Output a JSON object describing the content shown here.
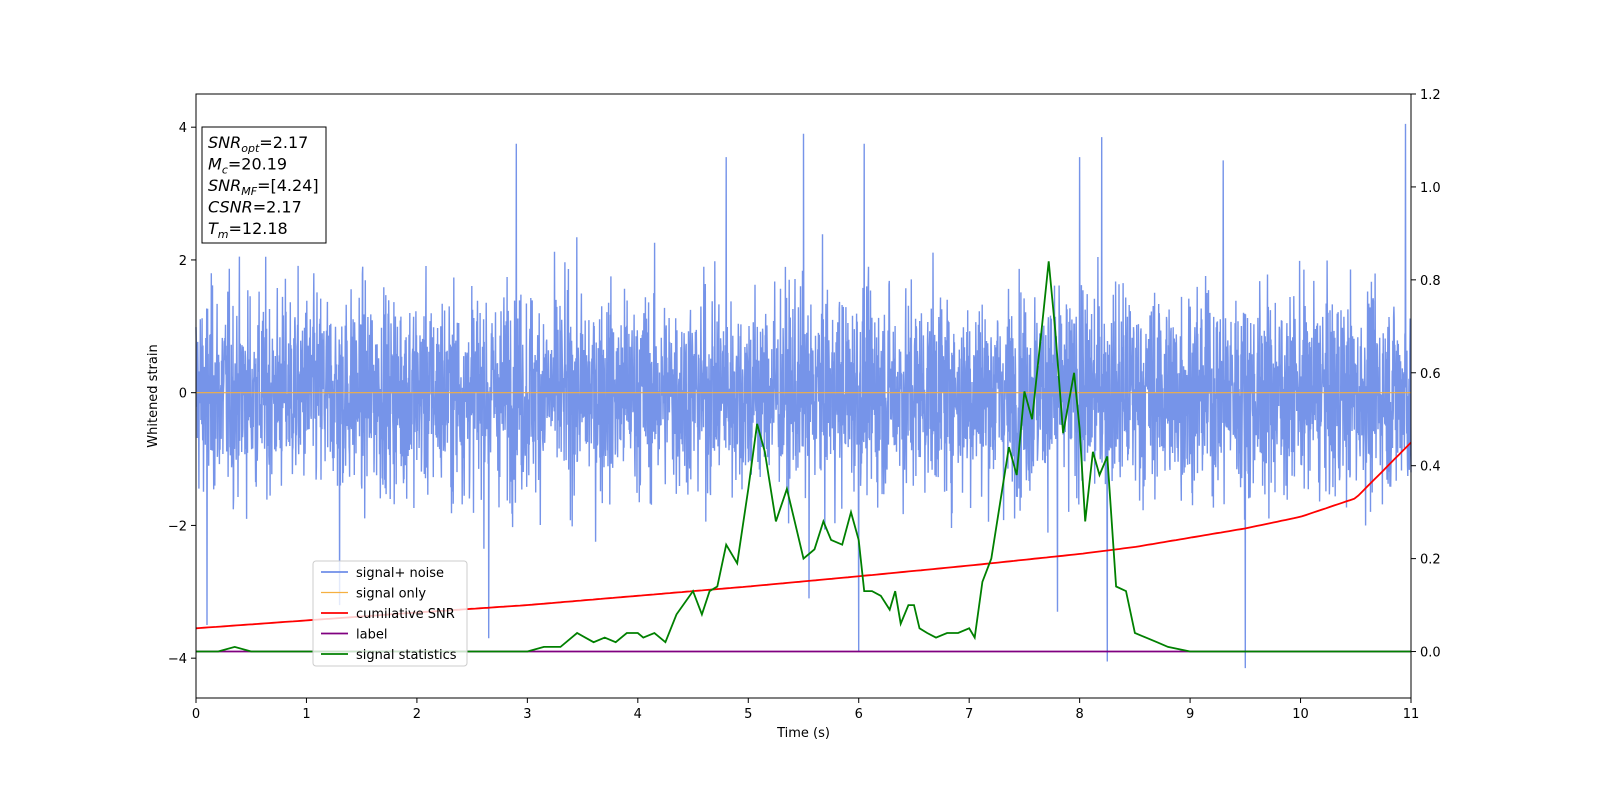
{
  "chart_data": {
    "type": "line",
    "xlabel": "Time (s)",
    "ylabel": "Whitened strain",
    "xlim": [
      0,
      11
    ],
    "ylim": [
      -4.6,
      4.5
    ],
    "y2lim": [
      -0.1,
      1.2
    ],
    "x_ticks": [
      0,
      1,
      2,
      3,
      4,
      5,
      6,
      7,
      8,
      9,
      10,
      11
    ],
    "y_ticks": [
      -4,
      -2,
      0,
      2,
      4
    ],
    "y2_ticks": [
      "0.0",
      "0.2",
      "0.4",
      "0.6",
      "0.8",
      "1.0",
      "1.2"
    ],
    "colors": {
      "signal_noise": "#6f8ee8",
      "signal_only": "#f5b041",
      "cumulative_snr": "#ff0000",
      "label": "#800080",
      "signal_statistics": "#008000"
    },
    "legend": {
      "placement": "lower-left",
      "entries": [
        "signal+ noise",
        "signal only",
        "cumilative SNR",
        "label",
        "signal statistics"
      ]
    },
    "info_box": {
      "lines": [
        {
          "base": "SNR",
          "sub": "opt",
          "value": "=2.17"
        },
        {
          "base": "M",
          "sub": "c",
          "value": "=20.19"
        },
        {
          "base": "SNR",
          "sub": "MF",
          "value": "=[4.24]"
        },
        {
          "base": "CSNR",
          "sub": "",
          "value": "=2.17"
        },
        {
          "base": "T",
          "sub": "m",
          "value": "=12.18"
        }
      ]
    },
    "series": [
      {
        "name": "signal+ noise",
        "axis": "left",
        "envelope_hint": "dense noise, roughly within -3.5 to 3.8",
        "peaks": [
          [
            0.1,
            -3.5
          ],
          [
            1.3,
            -3.2
          ],
          [
            2.65,
            -3.7
          ],
          [
            2.9,
            3.75
          ],
          [
            4.8,
            3.55
          ],
          [
            5.5,
            3.9
          ],
          [
            5.55,
            -3.1
          ],
          [
            6.0,
            -3.9
          ],
          [
            6.05,
            3.75
          ],
          [
            7.8,
            -3.3
          ],
          [
            8.0,
            3.55
          ],
          [
            8.2,
            3.85
          ],
          [
            8.25,
            -4.05
          ],
          [
            9.3,
            3.5
          ],
          [
            9.5,
            -4.15
          ],
          [
            10.95,
            4.05
          ]
        ]
      },
      {
        "name": "signal only",
        "axis": "left",
        "x": [
          0,
          11
        ],
        "y": [
          0,
          0
        ]
      },
      {
        "name": "cumilative SNR",
        "axis": "right",
        "x": [
          0,
          1,
          2,
          3,
          4,
          5,
          6,
          7,
          8,
          8.5,
          9,
          9.5,
          10,
          10.5,
          11
        ],
        "y": [
          0.05,
          0.067,
          0.084,
          0.1,
          0.12,
          0.14,
          0.162,
          0.185,
          0.21,
          0.225,
          0.245,
          0.265,
          0.29,
          0.33,
          0.45
        ]
      },
      {
        "name": "label",
        "axis": "right",
        "x": [
          0,
          11
        ],
        "y": [
          0,
          0
        ]
      },
      {
        "name": "signal statistics",
        "axis": "right",
        "x": [
          0,
          0.2,
          0.35,
          0.5,
          1.0,
          2.0,
          2.6,
          3.0,
          3.15,
          3.3,
          3.45,
          3.6,
          3.7,
          3.8,
          3.9,
          4.0,
          4.05,
          4.15,
          4.25,
          4.35,
          4.5,
          4.58,
          4.65,
          4.72,
          4.8,
          4.9,
          5.0,
          5.08,
          5.15,
          5.25,
          5.35,
          5.42,
          5.5,
          5.6,
          5.68,
          5.75,
          5.85,
          5.93,
          6.0,
          6.05,
          6.12,
          6.2,
          6.28,
          6.33,
          6.38,
          6.45,
          6.5,
          6.55,
          6.62,
          6.7,
          6.8,
          6.9,
          7.0,
          7.05,
          7.12,
          7.2,
          7.28,
          7.36,
          7.43,
          7.5,
          7.57,
          7.65,
          7.72,
          7.78,
          7.85,
          7.95,
          8.0,
          8.05,
          8.12,
          8.18,
          8.25,
          8.33,
          8.42,
          8.5,
          8.6,
          8.7,
          8.8,
          9.0,
          11.0
        ],
        "y": [
          0.0,
          0.0,
          0.01,
          0.0,
          0.0,
          0.0,
          0.0,
          0.0,
          0.01,
          0.01,
          0.04,
          0.02,
          0.03,
          0.02,
          0.04,
          0.04,
          0.03,
          0.04,
          0.02,
          0.08,
          0.13,
          0.08,
          0.13,
          0.14,
          0.23,
          0.19,
          0.35,
          0.49,
          0.43,
          0.28,
          0.35,
          0.28,
          0.2,
          0.22,
          0.28,
          0.24,
          0.23,
          0.3,
          0.24,
          0.13,
          0.13,
          0.12,
          0.09,
          0.13,
          0.06,
          0.1,
          0.1,
          0.05,
          0.04,
          0.03,
          0.04,
          0.04,
          0.05,
          0.03,
          0.15,
          0.2,
          0.32,
          0.44,
          0.38,
          0.56,
          0.5,
          0.68,
          0.84,
          0.69,
          0.47,
          0.6,
          0.48,
          0.28,
          0.43,
          0.38,
          0.42,
          0.14,
          0.13,
          0.04,
          0.03,
          0.02,
          0.01,
          0.0,
          0.0
        ]
      }
    ]
  }
}
